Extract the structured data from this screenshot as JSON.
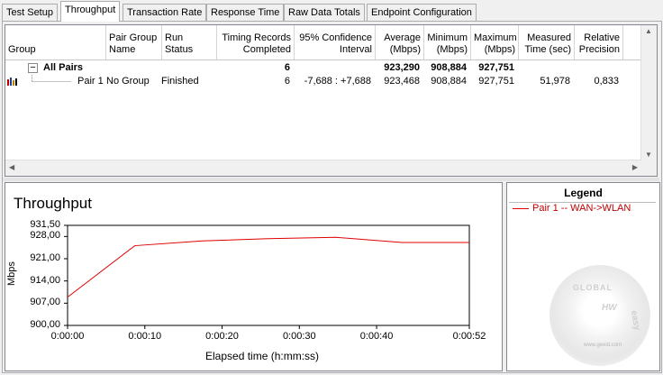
{
  "tabs": [
    {
      "label": "Test Setup",
      "active": false
    },
    {
      "label": "Throughput",
      "active": true
    },
    {
      "label": "Transaction Rate",
      "active": false
    },
    {
      "label": "Response Time",
      "active": false
    },
    {
      "label": "Raw Data Totals",
      "active": false
    },
    {
      "label": "Endpoint Configuration",
      "active": false
    }
  ],
  "table": {
    "columns": [
      {
        "key": "group",
        "lines": [
          "Group"
        ]
      },
      {
        "key": "pair_group_name",
        "lines": [
          "Pair Group",
          "Name"
        ]
      },
      {
        "key": "run_status",
        "lines": [
          "Run Status"
        ]
      },
      {
        "key": "timing_records",
        "lines": [
          "Timing Records",
          "Completed"
        ]
      },
      {
        "key": "confidence",
        "lines": [
          "95% Confidence",
          "Interval"
        ]
      },
      {
        "key": "average",
        "lines": [
          "Average",
          "(Mbps)"
        ]
      },
      {
        "key": "minimum",
        "lines": [
          "Minimum",
          "(Mbps)"
        ]
      },
      {
        "key": "maximum",
        "lines": [
          "Maximum",
          "(Mbps)"
        ]
      },
      {
        "key": "measured_time",
        "lines": [
          "Measured",
          "Time (sec)"
        ]
      },
      {
        "key": "relative_precision",
        "lines": [
          "Relative",
          "Precision"
        ]
      }
    ],
    "summary": {
      "expand_symbol": "−",
      "group": "All Pairs",
      "timing_records": "6",
      "average": "923,290",
      "minimum": "908,884",
      "maximum": "927,751"
    },
    "rows": [
      {
        "group": "Pair 1",
        "pair_group_name": "No Group",
        "run_status": "Finished",
        "timing_records": "6",
        "confidence": "-7,688 : +7,688",
        "average": "923,468",
        "minimum": "908,884",
        "maximum": "927,751",
        "measured_time": "51,978",
        "relative_precision": "0,833"
      }
    ]
  },
  "chart_data": {
    "type": "line",
    "title": "Throughput",
    "xlabel": "Elapsed time (h:mm:ss)",
    "ylabel": "Mbps",
    "xlim": [
      0,
      52
    ],
    "ylim": [
      900,
      931.5
    ],
    "x_ticks": [
      {
        "v": 0,
        "label": "0:00:00"
      },
      {
        "v": 10,
        "label": "0:00:10"
      },
      {
        "v": 20,
        "label": "0:00:20"
      },
      {
        "v": 30,
        "label": "0:00:30"
      },
      {
        "v": 40,
        "label": "0:00:40"
      },
      {
        "v": 52,
        "label": "0:00:52"
      }
    ],
    "y_ticks": [
      {
        "v": 900,
        "label": "900,00"
      },
      {
        "v": 907,
        "label": "907,00"
      },
      {
        "v": 914,
        "label": "914,00"
      },
      {
        "v": 921,
        "label": "921,00"
      },
      {
        "v": 928,
        "label": "928,00"
      },
      {
        "v": 931.5,
        "label": "931,50"
      }
    ],
    "grid": false,
    "legend_position": "right",
    "series": [
      {
        "name": "Pair 1 -- WAN->WLAN",
        "color": "#e00000",
        "x": [
          0,
          8.7,
          17.4,
          26,
          34.7,
          43.3,
          52
        ],
        "y": [
          908.9,
          925.1,
          926.6,
          927.3,
          927.75,
          926.1,
          926.1
        ]
      }
    ]
  },
  "legend": {
    "title": "Legend"
  },
  "watermark": {
    "top": "GLOBAL",
    "mid": "HW",
    "bottom": "easy",
    "url": "www.geeid.com"
  }
}
